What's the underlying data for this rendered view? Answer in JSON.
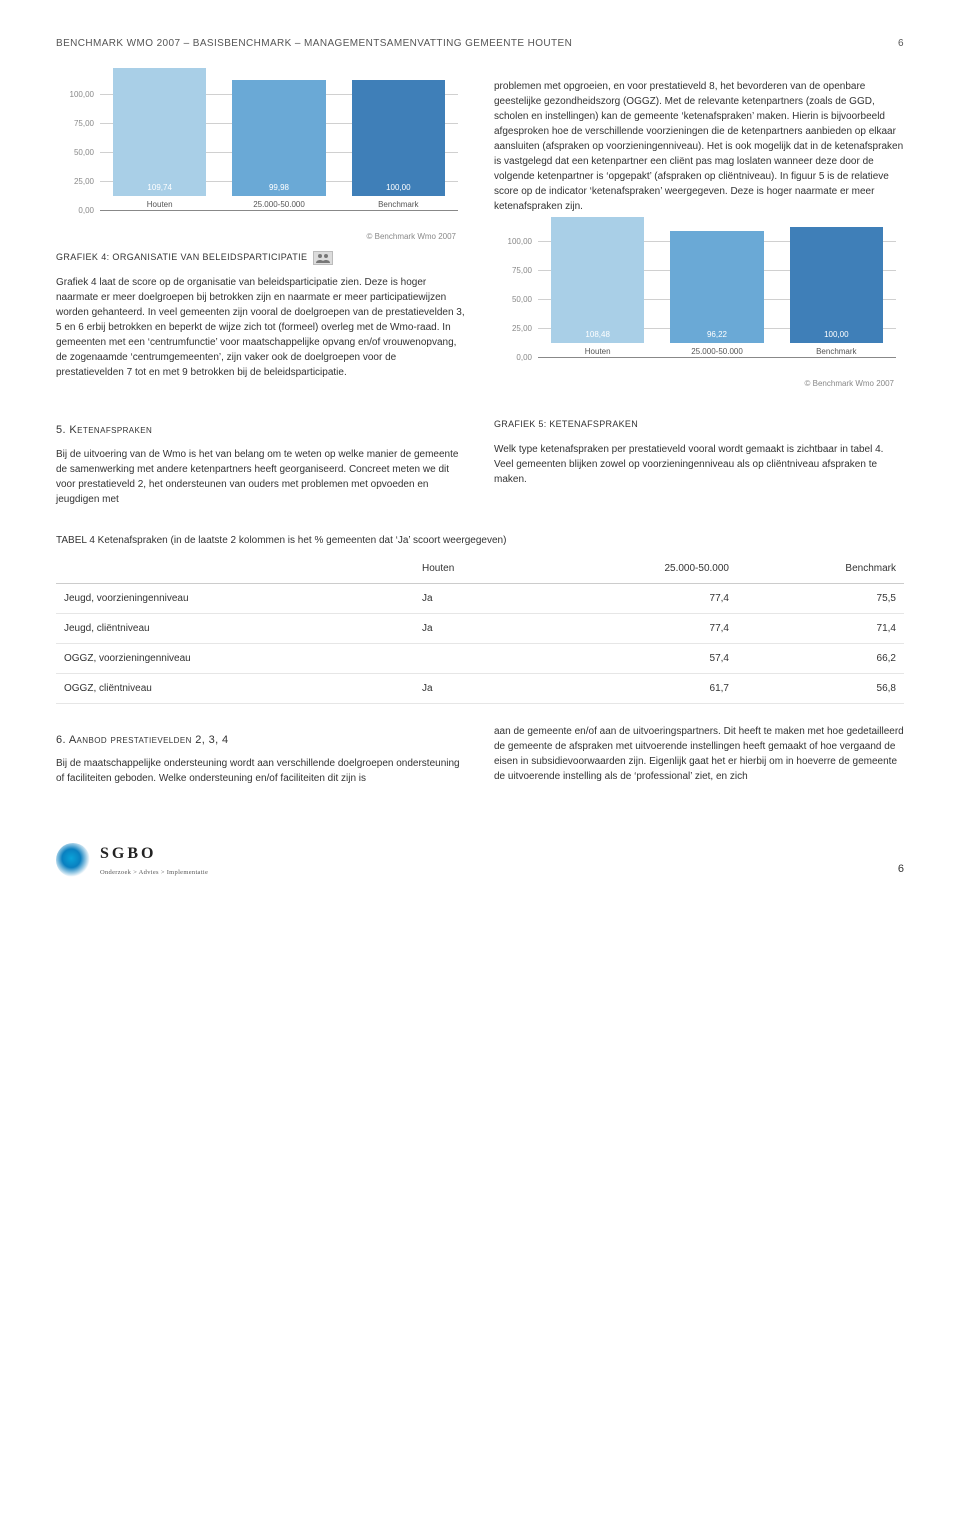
{
  "header": {
    "left": "BENCHMARK WMO 2007 – BASISBENCHMARK – MANAGEMENTSAMENVATTING GEMEENTE HOUTEN",
    "pagenum_top": "6"
  },
  "chart4": {
    "type": "bar",
    "categories": [
      "Houten",
      "25.000-50.000",
      "Benchmark"
    ],
    "values": [
      109.74,
      99.98,
      100.0
    ],
    "value_labels": [
      "109,74",
      "99,98",
      "100,00"
    ],
    "bar_colors": [
      "#a9cfe7",
      "#6aa9d6",
      "#3f7fb8"
    ],
    "yticks": [
      0,
      25,
      50,
      75,
      100
    ],
    "ytick_labels": [
      "0,00",
      "25,00",
      "50,00",
      "75,00",
      "100,00"
    ],
    "ylim": [
      0,
      110
    ],
    "grid_color": "#d0d0d0",
    "background_color": "#ffffff",
    "label_fontsize": 8,
    "copyright": "© Benchmark Wmo 2007"
  },
  "chart5": {
    "type": "bar",
    "categories": [
      "Houten",
      "25.000-50.000",
      "Benchmark"
    ],
    "values": [
      108.48,
      96.22,
      100.0
    ],
    "value_labels": [
      "108,48",
      "96,22",
      "100,00"
    ],
    "bar_colors": [
      "#a9cfe7",
      "#6aa9d6",
      "#3f7fb8"
    ],
    "yticks": [
      0,
      25,
      50,
      75,
      100
    ],
    "ytick_labels": [
      "0,00",
      "25,00",
      "50,00",
      "75,00",
      "100,00"
    ],
    "ylim": [
      0,
      110
    ],
    "grid_color": "#d0d0d0",
    "background_color": "#ffffff",
    "label_fontsize": 8,
    "copyright": "© Benchmark Wmo 2007"
  },
  "text": {
    "grafiek4_title": "GRAFIEK 4: ORGANISATIE VAN BELEIDSPARTICIPATIE",
    "para_left": "Grafiek 4 laat de score op de organisatie van beleidsparticipatie zien. Deze is hoger naarmate er meer doelgroepen bij betrokken zijn en naarmate er meer participatiewijzen worden gehanteerd. In veel gemeenten zijn vooral de doelgroepen van de prestatievelden 3, 5 en 6 erbij betrokken en beperkt de wijze zich tot (formeel) overleg met de Wmo-raad. In gemeenten met een ‘centrumfunctie’ voor maatschappelijke opvang en/of vrouwenopvang, de zogenaamde ‘centrumgemeenten’, zijn vaker ook de doelgroepen voor de prestatievelden 7 tot en met 9 betrokken bij de beleidsparticipatie.",
    "para_right1": "problemen met opgroeien, en voor prestatieveld 8, het bevorderen van de openbare geestelijke gezondheidszorg (OGGZ). Met de relevante ketenpartners (zoals de GGD, scholen en instellingen) kan de gemeente ‘ketenafspraken’ maken. Hierin is bijvoorbeeld afgesproken hoe de verschillende voorzieningen die de ketenpartners aanbieden op elkaar aansluiten (afspraken op voorzieningenniveau). Het is ook mogelijk dat in de ketenafspraken is vastgelegd dat een ketenpartner een cliënt pas mag loslaten wanneer deze door de volgende ketenpartner is ‘opgepakt’ (afspraken op cliëntniveau). In figuur 5 is de relatieve score op de indicator ‘ketenafspraken’ weergegeven. Deze is hoger naarmate er meer ketenafspraken zijn.",
    "section5_heading": "5. Ketenafspraken",
    "section5_left": "Bij de uitvoering van de Wmo is het van belang om te weten op welke manier de gemeente de samenwerking met andere ketenpartners heeft georganiseerd. Concreet meten we dit voor prestatieveld 2, het ondersteunen van ouders met problemen met opvoeden en jeugdigen met",
    "grafiek5_title": "GRAFIEK 5: KETENAFSPRAKEN",
    "section5_right": "Welk type ketenafspraken per prestatieveld vooral wordt gemaakt is zichtbaar in tabel 4. Veel gemeenten blijken zowel op voorzieningenniveau als op cliëntniveau afspraken te maken.",
    "table_caption": "TABEL 4 Ketenafspraken (in de laatste 2 kolommen is het % gemeenten dat ‘Ja’ scoort weergegeven)",
    "section6_heading": "6. Aanbod prestatievelden 2, 3, 4",
    "section6_left": "Bij de maatschappelijke ondersteuning wordt aan verschillende doelgroepen ondersteuning of faciliteiten geboden. Welke ondersteuning en/of faciliteiten dit zijn is",
    "section6_right": "aan de gemeente en/of aan de uitvoeringspartners. Dit heeft te maken met hoe gedetailleerd de gemeente de afspraken met uitvoerende instellingen heeft gemaakt of hoe vergaand de eisen in subsidievoorwaarden zijn. Eigenlijk gaat het er hierbij om in hoeverre de gemeente de uitvoerende instelling als de ‘professional’ ziet, en zich"
  },
  "table4": {
    "columns": [
      "",
      "Houten",
      "25.000-50.000",
      "Benchmark"
    ],
    "rows": [
      [
        "Jeugd, voorzieningenniveau",
        "Ja",
        "77,4",
        "75,5"
      ],
      [
        "Jeugd, cliëntniveau",
        "Ja",
        "77,4",
        "71,4"
      ],
      [
        "OGGZ, voorzieningenniveau",
        "",
        "57,4",
        "66,2"
      ],
      [
        "OGGZ, cliëntniveau",
        "Ja",
        "61,7",
        "56,8"
      ]
    ],
    "col_align": [
      "left",
      "left",
      "right",
      "right"
    ]
  },
  "logo": {
    "brand": "SGBO",
    "tagline": "Onderzoek > Advies > Implementatie"
  },
  "pagenum_bottom": "6"
}
